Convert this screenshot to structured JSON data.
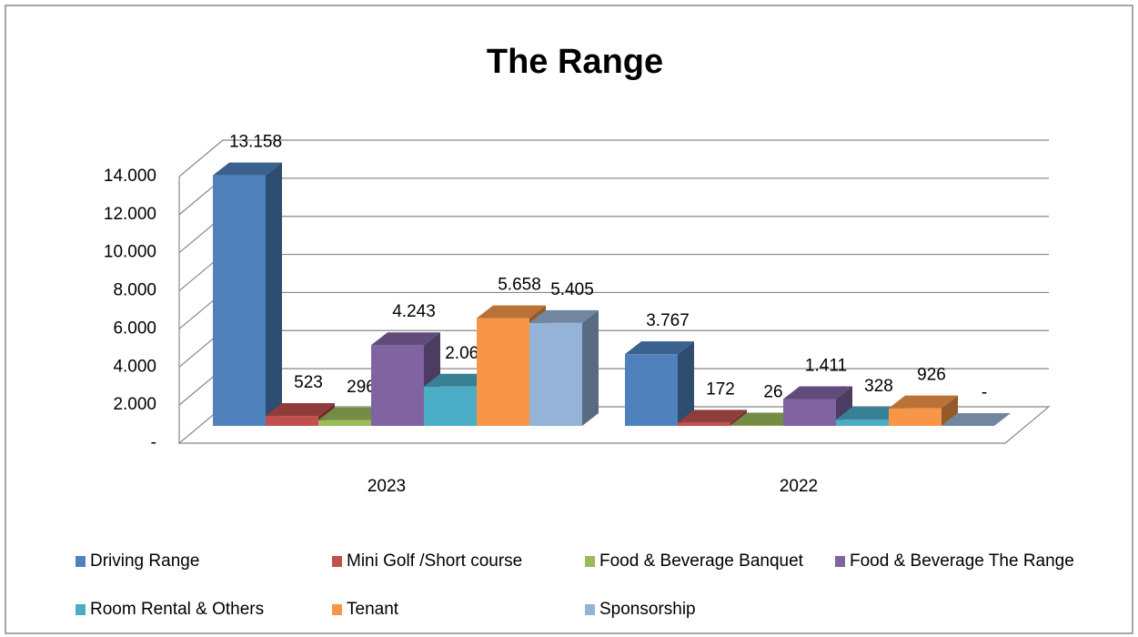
{
  "chart_data": {
    "type": "bar3d",
    "title": "The Range",
    "categories": [
      "2023",
      "2022"
    ],
    "series": [
      {
        "name": "Driving Range",
        "color": "#4f81bd",
        "values": [
          13158,
          3767
        ],
        "value_labels": [
          "13.158",
          "3.767"
        ]
      },
      {
        "name": "Mini Golf /Short course",
        "color": "#c0504d",
        "values": [
          523,
          172
        ],
        "value_labels": [
          "523",
          "172"
        ]
      },
      {
        "name": "Food & Beverage Banquet",
        "color": "#9bbb59",
        "values": [
          296,
          26
        ],
        "value_labels": [
          "296",
          "26"
        ]
      },
      {
        "name": "Food & Beverage The Range",
        "color": "#8064a2",
        "values": [
          4243,
          1411
        ],
        "value_labels": [
          "4.243",
          "1.411"
        ]
      },
      {
        "name": "Room Rental & Others",
        "color": "#4bacc6",
        "values": [
          2064,
          328
        ],
        "value_labels": [
          "2.064",
          "328"
        ]
      },
      {
        "name": "Tenant",
        "color": "#f79646",
        "values": [
          5658,
          926
        ],
        "value_labels": [
          "5.658",
          "926"
        ]
      },
      {
        "name": "Sponsorship",
        "color": "#95b3d7",
        "values": [
          5405,
          0
        ],
        "value_labels": [
          "5.405",
          "-"
        ]
      }
    ],
    "ylim": [
      0,
      14000
    ],
    "yticks": [
      {
        "value": 0,
        "label": "-"
      },
      {
        "value": 2000,
        "label": "2.000"
      },
      {
        "value": 4000,
        "label": "4.000"
      },
      {
        "value": 6000,
        "label": "6.000"
      },
      {
        "value": 8000,
        "label": "8.000"
      },
      {
        "value": 10000,
        "label": "10.000"
      },
      {
        "value": 12000,
        "label": "12.000"
      },
      {
        "value": 14000,
        "label": "14.000"
      }
    ],
    "grid": true,
    "legend": "bottom"
  }
}
